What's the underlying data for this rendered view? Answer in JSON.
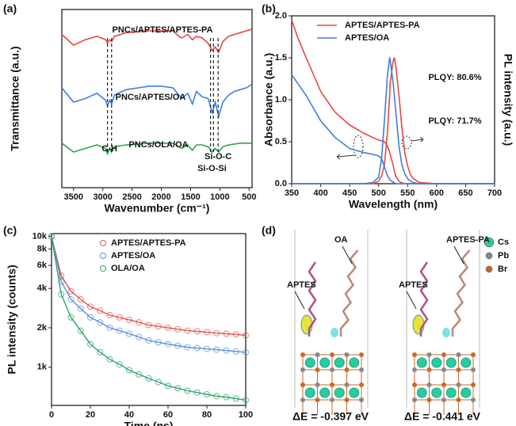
{
  "chart_data": [
    {
      "type": "line",
      "panel": "(a)",
      "x_label": "Wavenumber (cm⁻¹)",
      "y_label": "Transmittance (a.u.)",
      "xlim": [
        3700,
        450
      ],
      "xticks": [
        3500,
        3000,
        2500,
        2000,
        1500,
        1000,
        500
      ],
      "ylim": [
        0,
        10
      ],
      "x": [
        3700,
        3500,
        3300,
        3100,
        2950,
        2920,
        2880,
        2850,
        2800,
        2600,
        2400,
        2200,
        2000,
        1800,
        1700,
        1650,
        1550,
        1470,
        1400,
        1300,
        1200,
        1130,
        1080,
        1020,
        950,
        850,
        750,
        650,
        550,
        450
      ],
      "series": [
        {
          "name": "PNCs/APTES/APTES-PA",
          "color": "#e8473f",
          "values": [
            8.6,
            8.0,
            8.3,
            8.5,
            8.3,
            8.1,
            8.3,
            8.2,
            8.5,
            8.7,
            8.75,
            8.8,
            8.8,
            8.8,
            8.5,
            8.4,
            8.6,
            8.3,
            8.5,
            8.4,
            8.1,
            7.7,
            7.9,
            7.6,
            8.2,
            8.5,
            8.6,
            8.7,
            8.8,
            8.9
          ]
        },
        {
          "name": "PNCs/APTES/OA",
          "color": "#3b7fe0",
          "values": [
            5.6,
            4.8,
            5.0,
            5.3,
            4.9,
            4.6,
            4.9,
            4.7,
            5.2,
            5.5,
            5.6,
            5.7,
            5.7,
            5.6,
            5.2,
            5.0,
            5.3,
            4.7,
            5.4,
            5.1,
            5.0,
            4.2,
            4.8,
            4.0,
            4.8,
            5.2,
            5.4,
            5.5,
            5.6,
            5.8
          ]
        },
        {
          "name": "PNCs/OLA/OA",
          "color": "#2ea352",
          "values": [
            2.5,
            2.0,
            2.2,
            2.4,
            2.2,
            1.9,
            2.2,
            2.0,
            2.3,
            2.4,
            2.45,
            2.5,
            2.5,
            2.5,
            2.3,
            2.2,
            2.4,
            2.1,
            2.4,
            2.4,
            2.3,
            2.0,
            2.2,
            2.0,
            2.3,
            2.4,
            2.45,
            2.5,
            2.5,
            2.5
          ]
        }
      ],
      "dashed_lines": [
        2920,
        2850,
        1160,
        1110,
        1030
      ],
      "annotations": [
        {
          "text": "C-H",
          "x": 2885
        },
        {
          "text": "Si-O-Si",
          "x": 1135
        },
        {
          "text": "Si-O-C",
          "x": 1030
        }
      ]
    },
    {
      "type": "line",
      "panel": "(b)",
      "x_label": "Wavelength (nm)",
      "y_label": "Absorbance (a.u.)",
      "y2_label": "PL intensity (a.u.)",
      "xlim": [
        350,
        700
      ],
      "xticks": [
        350,
        400,
        450,
        500,
        550,
        600,
        650,
        700
      ],
      "ylim": [
        0,
        2
      ],
      "yticks": [
        {
          "value": 0,
          "label": "0.0"
        },
        {
          "value": 0.5,
          "label": "0.5"
        },
        {
          "value": 1,
          "label": "1.0"
        },
        {
          "value": 1.5,
          "label": "1.5"
        },
        {
          "value": 2,
          "label": "2.0"
        }
      ],
      "y2lim": [
        0,
        1.33
      ],
      "legend": "upper right",
      "x": [
        350,
        360,
        375,
        400,
        425,
        450,
        475,
        490,
        500,
        505,
        510,
        515,
        519,
        520,
        525,
        527,
        530,
        535,
        540,
        545,
        550,
        555,
        560,
        570,
        600,
        650,
        700
      ],
      "series": [
        {
          "name": "APTES/APTES-PA",
          "color": "#e8473f",
          "plqy": "PLQY: 80.6%",
          "values": [
            1.95,
            1.75,
            1.5,
            1.1,
            0.85,
            0.7,
            0.6,
            0.55,
            0.52,
            0.51,
            0.5,
            0.45,
            0.38,
            0.35,
            0.22,
            0.15,
            0.08,
            0.03,
            0.01,
            0,
            0,
            0,
            0,
            0,
            0,
            0,
            0
          ],
          "pl_values": [
            0,
            0,
            0,
            0,
            0,
            0,
            0,
            0,
            0.02,
            0.06,
            0.15,
            0.4,
            0.7,
            0.8,
            0.97,
            1.0,
            0.92,
            0.7,
            0.45,
            0.25,
            0.14,
            0.07,
            0.04,
            0.01,
            0,
            0,
            0
          ]
        },
        {
          "name": "APTES/OA",
          "color": "#3b7fe0",
          "plqy": "PLQY: 71.7%",
          "values": [
            1.3,
            1.2,
            1.05,
            0.75,
            0.55,
            0.42,
            0.37,
            0.35,
            0.33,
            0.3,
            0.2,
            0.1,
            0.05,
            0.04,
            0.02,
            0.01,
            0,
            0,
            0,
            0,
            0,
            0,
            0,
            0,
            0,
            0,
            0
          ],
          "pl_values": [
            0,
            0,
            0,
            0,
            0,
            0,
            0,
            0.01,
            0.05,
            0.2,
            0.5,
            0.85,
            1.0,
            0.98,
            0.8,
            0.7,
            0.55,
            0.3,
            0.15,
            0.08,
            0.04,
            0.02,
            0.01,
            0,
            0,
            0,
            0
          ]
        }
      ]
    },
    {
      "type": "scatter",
      "panel": "(c)",
      "x_label": "Time (ns)",
      "y_label": "PL intensity (counts)",
      "xlim": [
        0,
        100
      ],
      "xticks": [
        0,
        20,
        40,
        60,
        80,
        100
      ],
      "ylim": [
        510,
        10500
      ],
      "log_y": true,
      "yticks": [
        {
          "value": 1000,
          "label": "1k"
        },
        {
          "value": 2000,
          "label": "2k"
        },
        {
          "value": 4000,
          "label": "4k"
        },
        {
          "value": 6000,
          "label": "6k"
        },
        {
          "value": 8000,
          "label": "8k"
        },
        {
          "value": 10000,
          "label": "10k"
        }
      ],
      "legend": "upper right",
      "x": [
        0,
        5,
        10,
        15,
        20,
        25,
        30,
        35,
        40,
        45,
        50,
        55,
        60,
        65,
        70,
        75,
        80,
        85,
        90,
        95,
        100
      ],
      "series": [
        {
          "name": "APTES/APTES-PA",
          "color": "#e0574f",
          "values": [
            10000,
            5000,
            3800,
            3300,
            2900,
            2700,
            2500,
            2400,
            2300,
            2200,
            2100,
            2050,
            2000,
            1950,
            1900,
            1880,
            1850,
            1820,
            1800,
            1780,
            1750
          ]
        },
        {
          "name": "APTES/OA",
          "color": "#5a8fe0",
          "values": [
            10000,
            4500,
            3300,
            2800,
            2400,
            2200,
            2000,
            1900,
            1800,
            1700,
            1600,
            1550,
            1500,
            1460,
            1420,
            1400,
            1380,
            1360,
            1340,
            1320,
            1300
          ]
        },
        {
          "name": "OLA/OA",
          "color": "#2ea36a",
          "values": [
            10000,
            3600,
            2400,
            1900,
            1500,
            1300,
            1150,
            1050,
            950,
            880,
            820,
            770,
            720,
            690,
            660,
            640,
            620,
            600,
            590,
            575,
            560
          ]
        }
      ]
    }
  ],
  "panel_d": {
    "label": "(d)",
    "structures": [
      {
        "molecules": [
          "APTES",
          "OA"
        ],
        "energy": "ΔE = -0.397 eV"
      },
      {
        "molecules": [
          "APTES",
          "APTES-PA"
        ],
        "energy": "ΔE = -0.441 eV"
      }
    ],
    "legend": [
      "Cs",
      "Pb",
      "Br"
    ]
  }
}
